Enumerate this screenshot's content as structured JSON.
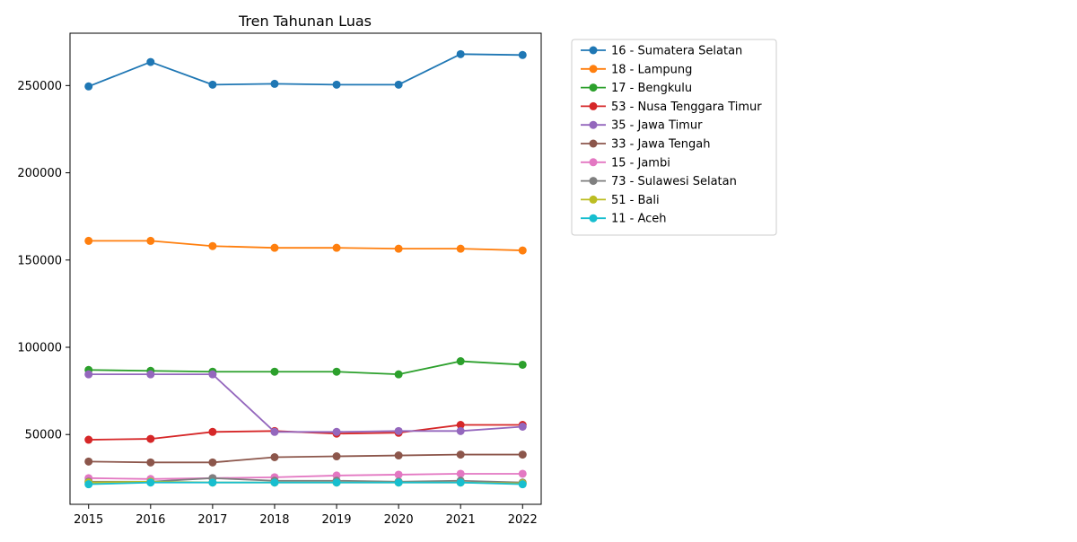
{
  "chart_data": {
    "type": "line",
    "title": "Tren Tahunan Luas",
    "xlabel": "",
    "ylabel": "",
    "x": [
      2015,
      2016,
      2017,
      2018,
      2019,
      2020,
      2021,
      2022
    ],
    "xlim": [
      2014.7,
      2022.3
    ],
    "ylim": [
      10000,
      280000
    ],
    "yticks": [
      50000,
      100000,
      150000,
      200000,
      250000
    ],
    "grid": false,
    "legend_position": "outside-right",
    "series": [
      {
        "name": "16 - Sumatera Selatan",
        "color": "#1f77b4",
        "values": [
          249500,
          263500,
          250500,
          251000,
          250500,
          250500,
          268000,
          267500
        ]
      },
      {
        "name": "18 - Lampung",
        "color": "#ff7f0e",
        "values": [
          161000,
          161000,
          158000,
          157000,
          157000,
          156500,
          156500,
          155500
        ]
      },
      {
        "name": "17 - Bengkulu",
        "color": "#2ca02c",
        "values": [
          87000,
          86500,
          86000,
          86000,
          86000,
          84500,
          92000,
          90000
        ]
      },
      {
        "name": "53 - Nusa Tenggara Timur",
        "color": "#d62728",
        "values": [
          47000,
          47500,
          51500,
          52000,
          50500,
          51000,
          55500,
          55500
        ]
      },
      {
        "name": "35 - Jawa Timur",
        "color": "#9467bd",
        "values": [
          84500,
          84500,
          84500,
          51500,
          51500,
          52000,
          52000,
          54500
        ]
      },
      {
        "name": "33 - Jawa Tengah",
        "color": "#8c564b",
        "values": [
          34500,
          34000,
          34000,
          37000,
          37500,
          38000,
          38500,
          38500
        ]
      },
      {
        "name": "15 - Jambi",
        "color": "#e377c2",
        "values": [
          25000,
          24500,
          25000,
          25500,
          26500,
          27000,
          27500,
          27500
        ]
      },
      {
        "name": "73 - Sulawesi Selatan",
        "color": "#7f7f7f",
        "values": [
          23000,
          23000,
          25000,
          23500,
          23500,
          23000,
          23500,
          22500
        ]
      },
      {
        "name": "51 - Bali",
        "color": "#bcbd22",
        "values": [
          22500,
          23000,
          22500,
          22500,
          22500,
          22500,
          22500,
          22000
        ]
      },
      {
        "name": "11 - Aceh",
        "color": "#17becf",
        "values": [
          21500,
          22500,
          22500,
          22500,
          22500,
          22500,
          22500,
          21500
        ]
      }
    ]
  }
}
